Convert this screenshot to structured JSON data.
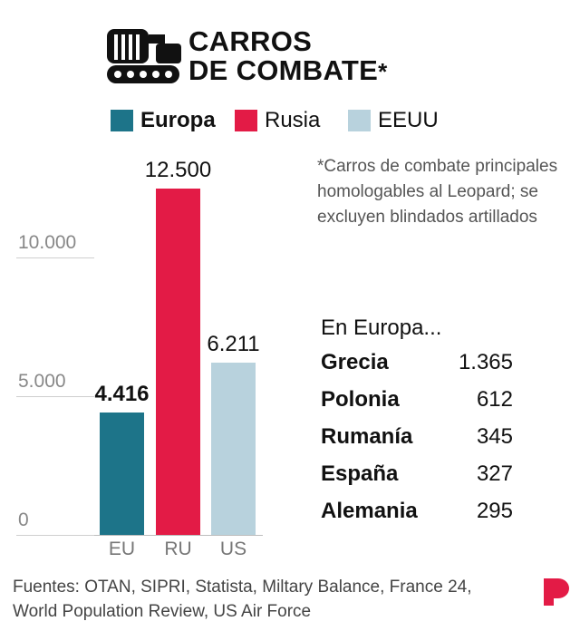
{
  "title": {
    "line1": "CARROS",
    "line2": "DE COMBATE",
    "asterisk": "*"
  },
  "icons": {
    "header": "tank-icon",
    "brand": "brand-logo-icon"
  },
  "legend": [
    {
      "label": "Europa",
      "color": "#1d7489"
    },
    {
      "label": "Rusia",
      "color": "#e31b46"
    },
    {
      "label": "EEUU",
      "color": "#b8d2dd"
    }
  ],
  "chart_data": {
    "type": "bar",
    "categories": [
      "EU",
      "RU",
      "US"
    ],
    "values": [
      4416,
      12500,
      6211
    ],
    "value_labels": [
      "4.416",
      "12.500",
      "6.211"
    ],
    "colors": [
      "#1d7489",
      "#e31b46",
      "#b8d2dd"
    ],
    "yticks": [
      0,
      5000,
      10000
    ],
    "ytick_labels": [
      "0",
      "5.000",
      "10.000"
    ],
    "ylim": [
      0,
      12500
    ]
  },
  "note": "*Carros de combate principales homologables al Leopard; se excluyen blindados artillados",
  "europe": {
    "heading": "En Europa...",
    "rows": [
      {
        "country": "Grecia",
        "value": "1.365"
      },
      {
        "country": "Polonia",
        "value": "612"
      },
      {
        "country": "Rumanía",
        "value": "345"
      },
      {
        "country": "España",
        "value": "327"
      },
      {
        "country": "Alemania",
        "value": "295"
      }
    ]
  },
  "sources": "Fuentes: OTAN, SIPRI, Statista, Miltary Balance, France 24, World Population Review, US Air Force"
}
